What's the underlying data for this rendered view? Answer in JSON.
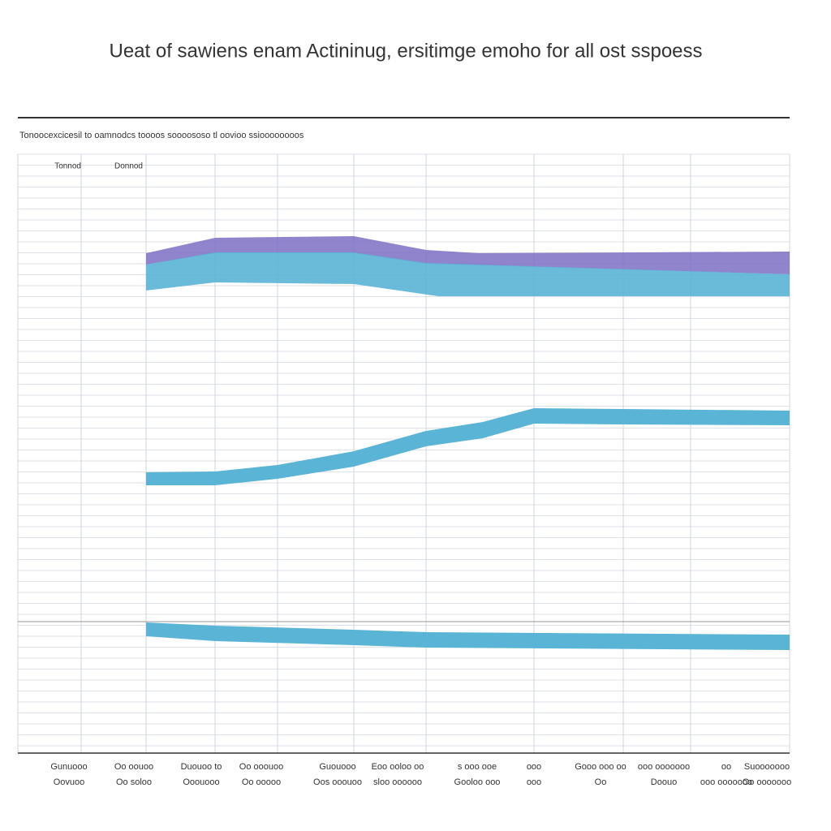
{
  "header": {
    "title": "Ueat of sawiens enam Actininug, ersitimge emoho for all ost sspoess",
    "subtitle": "Tonoocexcicesil to oamnodcs toooos soooososo tl oovioo ssioooooooos"
  },
  "table": {
    "columns": [
      "Tonnod",
      "Donnod"
    ],
    "footer_rows": [
      [
        "Gunuooo",
        "Oo oouoo",
        "Duouoo to",
        "Oo ooouoo",
        "Guouooo",
        "Eoo ooloo oo",
        "s ooo ooe",
        "ooo",
        "Gooo ooo oo",
        "ooo ooooooo",
        "oo",
        "Suooooooo"
      ],
      [
        "Oovuoo",
        "Oo soloo",
        "Ooouooo",
        "Oo ooooo",
        "Oos ooouoo",
        "sloo oooooo",
        "Gooloo ooo",
        "ooo",
        "Oo",
        "Doouo",
        "ooo ooooooo",
        "Oo  ooooooo"
      ]
    ]
  }
}
